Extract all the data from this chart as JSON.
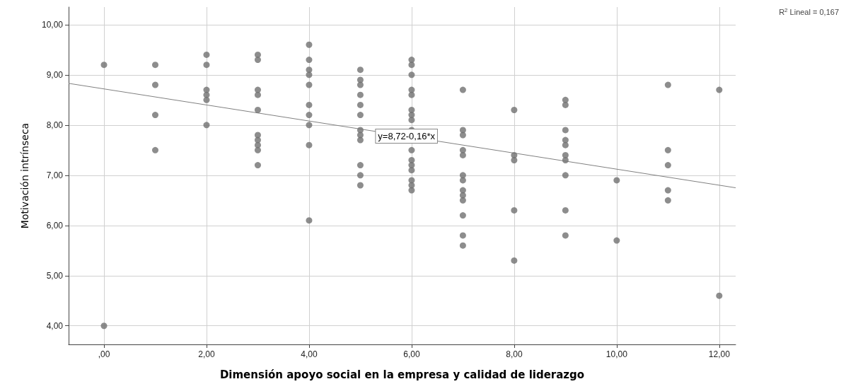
{
  "chart_data": {
    "type": "scatter",
    "xlabel": "Dimensión apoyo social en la empresa y calidad de liderazgo",
    "ylabel": "Motivación intrínseca",
    "xlim": [
      -0.69,
      12.32
    ],
    "ylim": [
      3.63,
      10.35
    ],
    "xticks": [
      {
        "value": 0,
        "label": ",00"
      },
      {
        "value": 2,
        "label": "2,00"
      },
      {
        "value": 4,
        "label": "4,00"
      },
      {
        "value": 6,
        "label": "6,00"
      },
      {
        "value": 8,
        "label": "8,00"
      },
      {
        "value": 10,
        "label": "10,00"
      },
      {
        "value": 12,
        "label": "12,00"
      }
    ],
    "yticks": [
      {
        "value": 4,
        "label": "4,00"
      },
      {
        "value": 5,
        "label": "5,00"
      },
      {
        "value": 6,
        "label": "6,00"
      },
      {
        "value": 7,
        "label": "7,00"
      },
      {
        "value": 8,
        "label": "8,00"
      },
      {
        "value": 9,
        "label": "9,00"
      },
      {
        "value": 10,
        "label": "10,00"
      }
    ],
    "grid": true,
    "marker": "circle",
    "series": [
      {
        "color": "#707070",
        "x": [
          0,
          0,
          1,
          1,
          1,
          1,
          2,
          2,
          2,
          2,
          2,
          2,
          3,
          3,
          3,
          3,
          3,
          3,
          3,
          3,
          3,
          3,
          4,
          4,
          4,
          4,
          4,
          4,
          4,
          4,
          4,
          4,
          5,
          5,
          5,
          5,
          5,
          5,
          5,
          5,
          5,
          5,
          5,
          5,
          6,
          6,
          6,
          6,
          6,
          6,
          6,
          6,
          6,
          6,
          6,
          6,
          6,
          6,
          6,
          6,
          7,
          7,
          7,
          7,
          7,
          7,
          7,
          7,
          7,
          7,
          7,
          7,
          7,
          8,
          8,
          8,
          8,
          8,
          9,
          9,
          9,
          9,
          9,
          9,
          9,
          9,
          9,
          9,
          10,
          10,
          11,
          11,
          11,
          11,
          11,
          12,
          12
        ],
        "values": [
          9.2,
          4.0,
          9.2,
          8.8,
          8.2,
          7.5,
          9.4,
          9.2,
          8.7,
          8.6,
          8.5,
          8.0,
          9.4,
          9.3,
          8.7,
          8.6,
          8.3,
          7.8,
          7.7,
          7.6,
          7.5,
          7.2,
          9.6,
          9.3,
          9.1,
          9.0,
          8.8,
          8.4,
          8.2,
          8.0,
          7.6,
          6.1,
          9.1,
          8.9,
          8.8,
          8.6,
          8.4,
          8.2,
          7.9,
          7.8,
          7.7,
          7.2,
          7.0,
          6.8,
          9.3,
          9.2,
          9.0,
          8.7,
          8.6,
          8.3,
          8.2,
          8.1,
          7.9,
          7.5,
          7.3,
          7.2,
          7.1,
          6.9,
          6.8,
          6.7,
          8.7,
          7.9,
          7.8,
          7.5,
          7.4,
          7.0,
          6.9,
          6.7,
          6.6,
          6.5,
          6.2,
          5.8,
          5.6,
          8.3,
          7.4,
          7.3,
          6.3,
          5.3,
          8.5,
          8.4,
          7.9,
          7.7,
          7.6,
          7.4,
          7.3,
          7.0,
          6.3,
          5.8,
          6.9,
          5.7,
          8.8,
          7.5,
          7.2,
          6.7,
          6.5,
          8.7,
          4.6
        ]
      },
      {
        "type": "line",
        "color": "#808080",
        "marker": "none",
        "x": [
          -0.69,
          12.32
        ],
        "values": [
          8.83,
          6.75
        ]
      }
    ],
    "annotations": [
      {
        "text": "y=8,72-0,16*x",
        "x": 5.9,
        "y": 7.78
      },
      "R$^{2}$ Lineal = 0,167"
    ]
  }
}
